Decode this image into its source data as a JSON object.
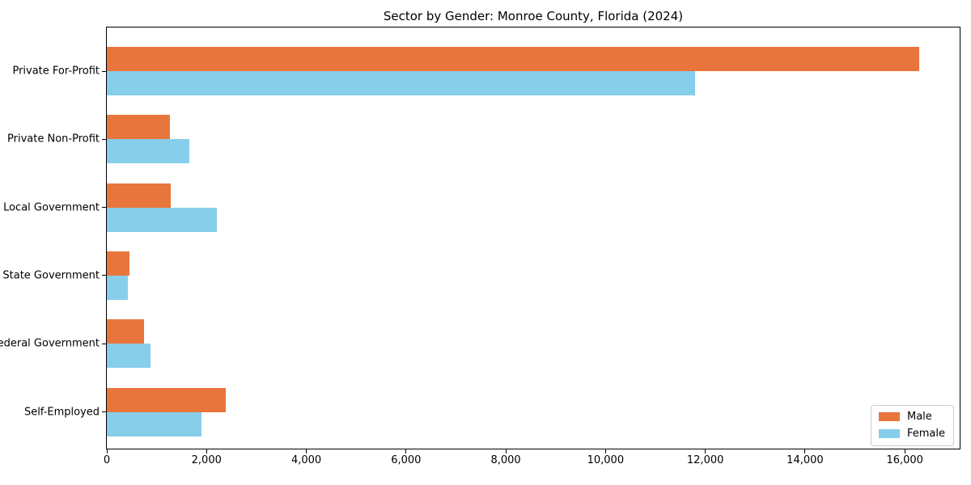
{
  "chart_data": {
    "type": "bar",
    "orientation": "horizontal",
    "title": "Sector by Gender: Monroe County, Florida (2024)",
    "categories": [
      "Private For-Profit",
      "Private Non-Profit",
      "Local Government",
      "State Government",
      "Federal Government",
      "Self-Employed"
    ],
    "series": [
      {
        "name": "Male",
        "color": "#e8763c",
        "values": [
          16290,
          1270,
          1280,
          450,
          750,
          2390
        ]
      },
      {
        "name": "Female",
        "color": "#87ceeb",
        "values": [
          11790,
          1650,
          2200,
          420,
          880,
          1900
        ]
      }
    ],
    "xlabel": "",
    "ylabel": "",
    "xlim": [
      0,
      17100
    ],
    "x_ticks": [
      0,
      2000,
      4000,
      6000,
      8000,
      10000,
      12000,
      14000,
      16000
    ],
    "x_tick_labels": [
      "0",
      "2,000",
      "4,000",
      "6,000",
      "8,000",
      "10,000",
      "12,000",
      "14,000",
      "16,000"
    ],
    "grid": false,
    "legend_position": "lower right"
  }
}
